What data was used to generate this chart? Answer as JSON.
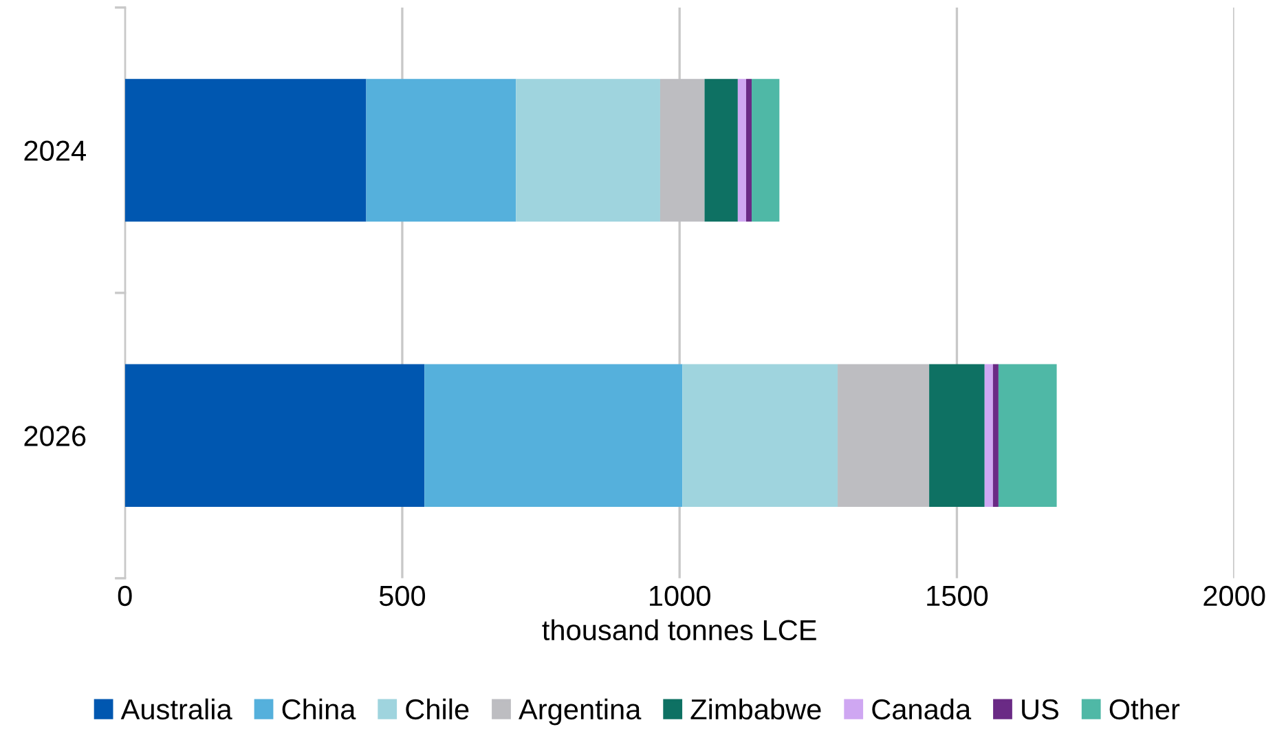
{
  "chart_data": {
    "type": "bar",
    "orientation": "horizontal",
    "stacked": true,
    "xlabel": "thousand tonnes LCE",
    "categories": [
      "2024",
      "2026"
    ],
    "series": [
      {
        "name": "Australia",
        "color": "#0057b0",
        "values": [
          435,
          540
        ]
      },
      {
        "name": "China",
        "color": "#55b0dc",
        "values": [
          270,
          465
        ]
      },
      {
        "name": "Chile",
        "color": "#9fd4de",
        "values": [
          260,
          280
        ]
      },
      {
        "name": "Argentina",
        "color": "#bdbdc1",
        "values": [
          80,
          165
        ]
      },
      {
        "name": "Zimbabwe",
        "color": "#0e7163",
        "values": [
          60,
          100
        ]
      },
      {
        "name": "Canada",
        "color": "#cfa7f2",
        "values": [
          15,
          15
        ]
      },
      {
        "name": "US",
        "color": "#6a2a85",
        "values": [
          10,
          10
        ]
      },
      {
        "name": "Other",
        "color": "#4fb8a6",
        "values": [
          50,
          105
        ]
      }
    ],
    "xlim": [
      0,
      2000
    ],
    "xticks": [
      0,
      500,
      1000,
      1500,
      2000
    ],
    "grid": "x",
    "legend": "bottom"
  }
}
